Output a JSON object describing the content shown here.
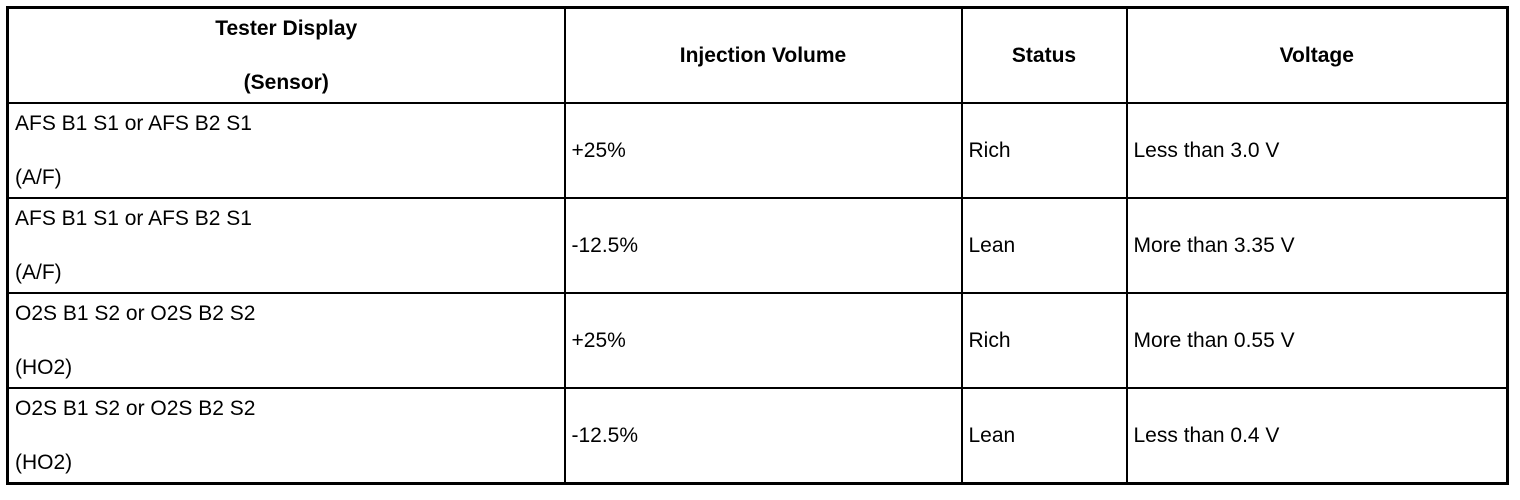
{
  "table": {
    "header": [
      [
        "Tester Display",
        "(Sensor)"
      ],
      "Injection Volume",
      "Status",
      "Voltage"
    ],
    "rows": [
      [
        [
          "AFS B1 S1 or AFS B2 S1",
          "(A/F)"
        ],
        "+25%",
        "Rich",
        "Less than 3.0 V"
      ],
      [
        [
          "AFS B1 S1 or AFS B2 S1",
          "(A/F)"
        ],
        "-12.5%",
        "Lean",
        "More than 3.35 V"
      ],
      [
        [
          "O2S B1 S2 or O2S B2 S2",
          "(HO2)"
        ],
        "+25%",
        "Rich",
        "More than 0.55 V"
      ],
      [
        [
          "O2S B1 S2 or O2S B2 S2",
          "(HO2)"
        ],
        "-12.5%",
        "Lean",
        "Less than 0.4 V"
      ]
    ]
  }
}
